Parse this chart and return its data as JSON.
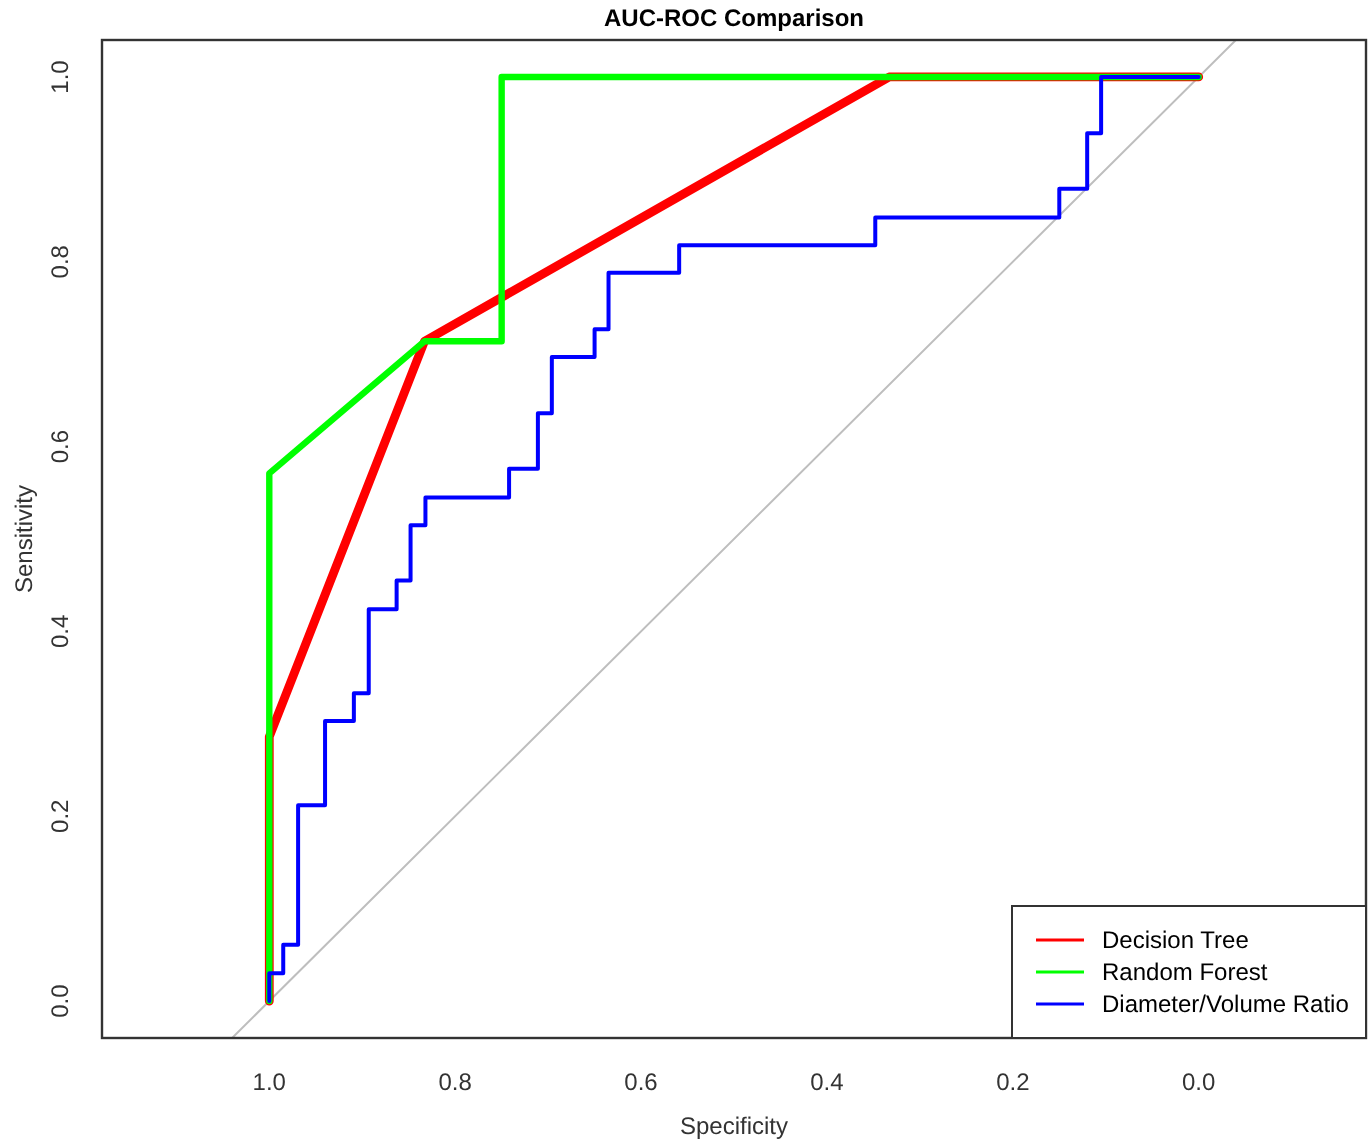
{
  "chart_data": {
    "type": "line",
    "title": "AUC-ROC Comparison",
    "xlabel": "Specificity",
    "ylabel": "Sensitivity",
    "xlim": [
      1.18,
      -0.18
    ],
    "ylim": [
      -0.04,
      1.04
    ],
    "xticks": [
      {
        "value": 1,
        "label": "1.0"
      },
      {
        "value": 0.8,
        "label": "0.8"
      },
      {
        "value": 0.6,
        "label": "0.6"
      },
      {
        "value": 0.4,
        "label": "0.4"
      },
      {
        "value": 0.2,
        "label": "0.2"
      },
      {
        "value": 0,
        "label": "0.0"
      }
    ],
    "yticks": [
      {
        "value": 0,
        "label": "0.0"
      },
      {
        "value": 0.2,
        "label": "0.2"
      },
      {
        "value": 0.4,
        "label": "0.4"
      },
      {
        "value": 0.6,
        "label": "0.6"
      },
      {
        "value": 0.8,
        "label": "0.8"
      },
      {
        "value": 1,
        "label": "1.0"
      }
    ],
    "grid": false,
    "legend": "bottom right",
    "marker": "none",
    "line_style": "solid",
    "series": [
      {
        "type": "line",
        "color": "#bebebe",
        "x": [
          1.04,
          -0.04
        ],
        "values": [
          -0.04,
          1.04
        ]
      },
      {
        "name": "Decision Tree",
        "color": "#ff0000",
        "x": [
          1,
          1,
          0.833,
          0.333,
          0
        ],
        "values": [
          0,
          0.286,
          0.714,
          1,
          1
        ]
      },
      {
        "name": "Random Forest",
        "color": "#00ff00",
        "x": [
          1,
          1,
          0.833,
          0.75,
          0.75,
          0
        ],
        "values": [
          0,
          0.571,
          0.714,
          0.714,
          1,
          1
        ]
      },
      {
        "name": "Diameter/Volume Ratio",
        "color": "#0000ff",
        "x": [
          1,
          1,
          0.985,
          0.985,
          0.969,
          0.969,
          0.94,
          0.94,
          0.909,
          0.909,
          0.893,
          0.893,
          0.863,
          0.863,
          0.848,
          0.848,
          0.832,
          0.832,
          0.742,
          0.742,
          0.711,
          0.711,
          0.696,
          0.696,
          0.65,
          0.65,
          0.635,
          0.635,
          0.559,
          0.559,
          0.348,
          0.348,
          0.15,
          0.15,
          0.12,
          0.12,
          0.105,
          0.105,
          0
        ],
        "values": [
          0,
          0.03,
          0.03,
          0.061,
          0.061,
          0.212,
          0.212,
          0.303,
          0.303,
          0.333,
          0.333,
          0.424,
          0.424,
          0.455,
          0.455,
          0.515,
          0.515,
          0.545,
          0.545,
          0.576,
          0.576,
          0.636,
          0.636,
          0.697,
          0.697,
          0.727,
          0.727,
          0.788,
          0.788,
          0.818,
          0.818,
          0.848,
          0.848,
          0.879,
          0.879,
          0.939,
          0.939,
          1,
          1
        ]
      }
    ]
  }
}
